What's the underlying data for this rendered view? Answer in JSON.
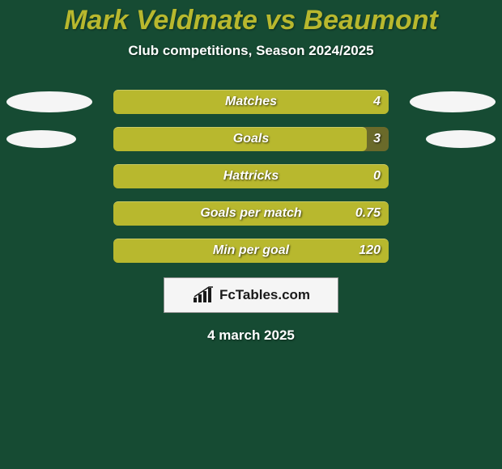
{
  "background_color": "#164b33",
  "title": {
    "text": "Mark Veldmate vs Beaumont",
    "color": "#b8b82e",
    "fontsize": 34
  },
  "subtitle": {
    "text": "Club competitions, Season 2024/2025",
    "fontsize": 17
  },
  "ellipse": {
    "color": "#f5f5f5",
    "width_large": 106,
    "height_large": 26,
    "width_small": 86,
    "height_small": 22
  },
  "bar": {
    "fill_color": "#b8b82e",
    "track_color": "#6a6a2a",
    "label_fontsize": 16,
    "value_fontsize": 16,
    "height": 30,
    "radius": 6
  },
  "stats": [
    {
      "label": "Matches",
      "value": "4",
      "fill_pct": 100,
      "ellipse_size": "large"
    },
    {
      "label": "Goals",
      "value": "3",
      "fill_pct": 92,
      "ellipse_size": "small"
    },
    {
      "label": "Hattricks",
      "value": "0",
      "fill_pct": 100,
      "ellipse_size": "none"
    },
    {
      "label": "Goals per match",
      "value": "0.75",
      "fill_pct": 100,
      "ellipse_size": "none"
    },
    {
      "label": "Min per goal",
      "value": "120",
      "fill_pct": 100,
      "ellipse_size": "none"
    }
  ],
  "brand": {
    "text": "FcTables.com",
    "box_bg": "#f5f5f5",
    "icon_color": "#1a1a1a"
  },
  "date": {
    "text": "4 march 2025",
    "fontsize": 17
  }
}
